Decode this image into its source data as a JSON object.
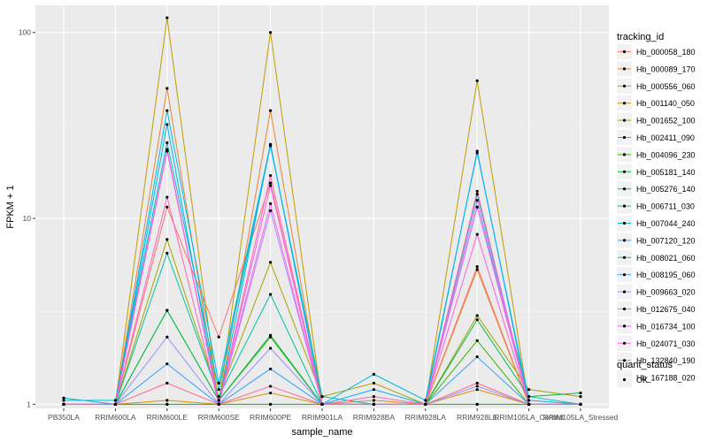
{
  "chart_data": {
    "type": "line",
    "xlabel": "sample_name",
    "ylabel": "FPKM + 1",
    "y_scale": "log10",
    "ylim": [
      0.95,
      140
    ],
    "y_ticks": [
      {
        "value": 1,
        "label": "1"
      },
      {
        "value": 10,
        "label": "10"
      },
      {
        "value": 100,
        "label": "100"
      }
    ],
    "categories": [
      "PB350LA",
      "RRIM600LA",
      "RRIM600LE",
      "RRIM600SE",
      "RRIM600PE",
      "RRIM901LA",
      "RRIM928BA",
      "RRIM928LA",
      "RRIM928LE",
      "RRIM105LA_Control",
      "RRIM105LA_Stressed"
    ],
    "legend_title": "tracking_id",
    "legend_position": "right",
    "shape_legend": {
      "title": "quant_status",
      "items": [
        {
          "label": "OK",
          "shape": "point"
        }
      ]
    },
    "series": [
      {
        "name": "Hb_000058_180",
        "color": "#F8766D",
        "values": [
          1.0,
          1.0,
          11.5,
          2.3,
          15.5,
          1.0,
          1.0,
          1.0,
          5.5,
          1.0,
          1.0
        ]
      },
      {
        "name": "Hb_000089_170",
        "color": "#EA8331",
        "values": [
          1.0,
          1.0,
          50.0,
          1.0,
          38.0,
          1.0,
          1.0,
          1.0,
          5.3,
          1.0,
          1.0
        ]
      },
      {
        "name": "Hb_000556_060",
        "color": "#D89000",
        "values": [
          1.0,
          1.0,
          1.05,
          1.0,
          1.15,
          1.0,
          1.05,
          1.0,
          1.2,
          1.0,
          1.0
        ]
      },
      {
        "name": "Hb_001140_050",
        "color": "#C09B00",
        "values": [
          1.0,
          1.0,
          120.0,
          1.0,
          100.0,
          1.0,
          1.0,
          1.0,
          55.0,
          1.0,
          1.0
        ]
      },
      {
        "name": "Hb_001652_100",
        "color": "#A3A500",
        "values": [
          1.0,
          1.0,
          7.7,
          1.1,
          5.8,
          1.1,
          1.3,
          1.0,
          3.0,
          1.2,
          1.1
        ]
      },
      {
        "name": "Hb_002411_090",
        "color": "#7CAE00",
        "values": [
          1.0,
          1.0,
          1.0,
          1.0,
          1.0,
          1.0,
          1.0,
          1.0,
          1.0,
          1.0,
          1.0
        ]
      },
      {
        "name": "Hb_004096_230",
        "color": "#39B600",
        "values": [
          1.0,
          1.0,
          3.2,
          1.05,
          2.3,
          1.0,
          1.0,
          1.0,
          2.2,
          1.0,
          1.0
        ]
      },
      {
        "name": "Hb_005181_140",
        "color": "#00BB4E",
        "values": [
          1.0,
          1.0,
          3.2,
          1.05,
          2.35,
          1.0,
          1.0,
          1.0,
          2.85,
          1.1,
          1.15
        ]
      },
      {
        "name": "Hb_005276_140",
        "color": "#00BF7D",
        "values": [
          1.0,
          1.0,
          1.0,
          1.0,
          1.0,
          1.0,
          1.0,
          1.0,
          1.0,
          1.0,
          1.0
        ]
      },
      {
        "name": "Hb_006711_030",
        "color": "#00C1A3",
        "values": [
          1.0,
          1.0,
          6.5,
          1.1,
          3.9,
          1.0,
          1.0,
          1.0,
          13.5,
          1.0,
          1.0
        ]
      },
      {
        "name": "Hb_007044_240",
        "color": "#00BFC4",
        "values": [
          1.05,
          1.05,
          25.5,
          1.2,
          24.5,
          1.1,
          1.0,
          1.0,
          11.5,
          1.1,
          1.0
        ]
      },
      {
        "name": "Hb_007120_120",
        "color": "#00BAE0",
        "values": [
          1.0,
          1.0,
          38.0,
          1.3,
          25.0,
          1.0,
          1.45,
          1.05,
          22.5,
          1.05,
          1.0
        ]
      },
      {
        "name": "Hb_008021_060",
        "color": "#00B0F6",
        "values": [
          1.08,
          1.0,
          32.0,
          1.0,
          25.0,
          1.0,
          1.2,
          1.0,
          23.0,
          1.0,
          1.0
        ]
      },
      {
        "name": "Hb_008195_060",
        "color": "#35A2FF",
        "values": [
          1.0,
          1.0,
          1.65,
          1.0,
          1.55,
          1.0,
          1.0,
          1.0,
          1.8,
          1.0,
          1.0
        ]
      },
      {
        "name": "Hb_009663_020",
        "color": "#9590FF",
        "values": [
          1.0,
          1.0,
          2.3,
          1.0,
          2.0,
          1.0,
          1.0,
          1.0,
          1.25,
          1.0,
          1.0
        ]
      },
      {
        "name": "Hb_012675_040",
        "color": "#C77CFF",
        "values": [
          1.0,
          1.0,
          23.0,
          1.0,
          11.0,
          1.0,
          1.0,
          1.0,
          12.5,
          1.0,
          1.0
        ]
      },
      {
        "name": "Hb_016734_100",
        "color": "#E76BF3",
        "values": [
          1.0,
          1.0,
          23.5,
          1.0,
          12.0,
          1.0,
          1.0,
          1.0,
          11.5,
          1.0,
          1.0
        ]
      },
      {
        "name": "Hb_024071_030",
        "color": "#FA62DB",
        "values": [
          1.0,
          1.0,
          23.0,
          1.0,
          15.0,
          1.0,
          1.0,
          1.0,
          8.2,
          1.0,
          1.0
        ]
      },
      {
        "name": "Hb_132840_190",
        "color": "#FF62BC",
        "values": [
          1.0,
          1.0,
          13.0,
          1.0,
          17.0,
          1.0,
          1.1,
          1.0,
          14.0,
          1.0,
          1.0
        ]
      },
      {
        "name": "Hb_167188_020",
        "color": "#FF6C91",
        "values": [
          1.0,
          1.0,
          1.3,
          1.0,
          1.25,
          1.0,
          1.0,
          1.0,
          1.3,
          1.0,
          1.0
        ]
      }
    ]
  },
  "colors": {
    "panel_background": "#EBEBEB",
    "grid_major": "#FFFFFF",
    "grid_minor": "#F4F4F4",
    "point": "#000000"
  }
}
